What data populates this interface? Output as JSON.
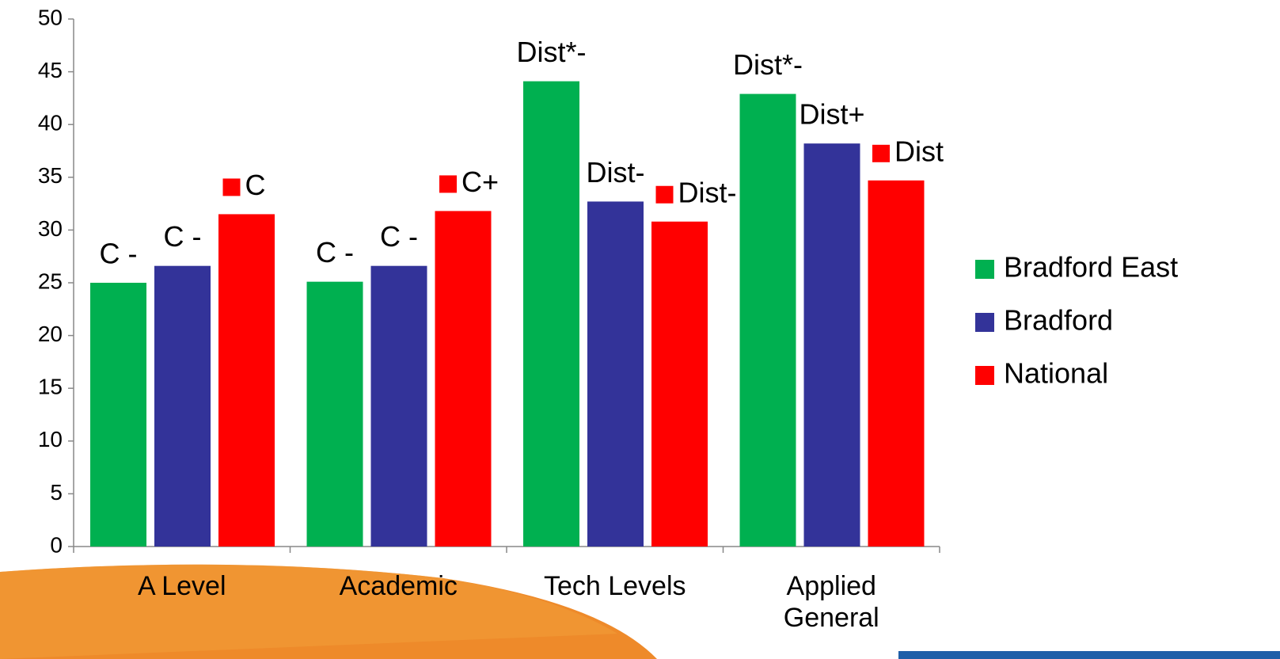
{
  "chart_data": {
    "type": "bar",
    "categories": [
      "A Level",
      "Academic",
      "Tech Levels",
      "Applied General"
    ],
    "series": [
      {
        "name": "Bradford East",
        "color": "#00b050",
        "values": [
          25.0,
          25.1,
          44.1,
          42.9
        ],
        "value_labels": [
          "C -",
          "C -",
          "Dist*-",
          "Dist*-"
        ]
      },
      {
        "name": "Bradford",
        "color": "#333399",
        "values": [
          26.6,
          26.6,
          32.7,
          38.2
        ],
        "value_labels": [
          "C -",
          "C -",
          "Dist-",
          "Dist+"
        ]
      },
      {
        "name": "National",
        "color": "#ff0000",
        "values": [
          31.5,
          31.8,
          30.8,
          34.7
        ],
        "value_labels": [
          "C",
          "C+",
          "Dist-",
          "Dist"
        ]
      }
    ],
    "ylim": [
      0,
      50
    ],
    "yticks": [
      0,
      5,
      10,
      15,
      20,
      25,
      30,
      35,
      40,
      45,
      50
    ],
    "legend": "right"
  }
}
